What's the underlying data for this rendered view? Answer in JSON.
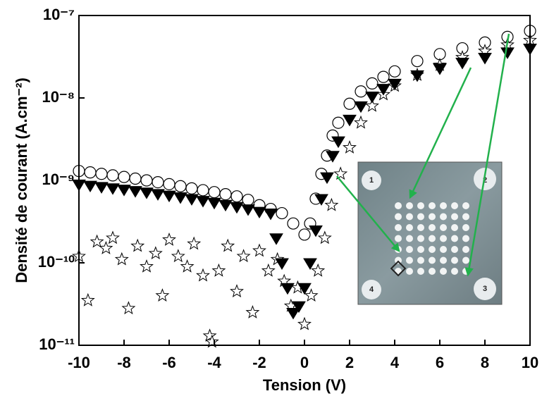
{
  "chart_data": {
    "type": "scatter",
    "ylog": true,
    "xlabel": "Tension (V)",
    "ylabel": "Densité de courant (A.cm⁻²)",
    "xlim": [
      -10,
      10
    ],
    "xticks": [
      -10,
      -8,
      -6,
      -4,
      -2,
      0,
      2,
      4,
      6,
      8,
      10
    ],
    "ylim": [
      1e-11,
      1e-07
    ],
    "yticks": [
      {
        "value": 1e-11,
        "label": "10⁻¹¹"
      },
      {
        "value": 1e-10,
        "label": "10⁻¹⁰"
      },
      {
        "value": 1e-09,
        "label": "10⁻⁹"
      },
      {
        "value": 1e-08,
        "label": "10⁻⁸"
      },
      {
        "value": 1e-07,
        "label": "10⁻⁷"
      }
    ],
    "series": [
      {
        "marker": "circle",
        "color": "#000000",
        "fill": "#ffffff",
        "x": [
          -10,
          -9.5,
          -9,
          -8.5,
          -8,
          -7.5,
          -7,
          -6.5,
          -6,
          -5.5,
          -5,
          -4.5,
          -4,
          -3.5,
          -3,
          -2.5,
          -2,
          -1.5,
          -1,
          -0.5,
          0,
          0.25,
          0.5,
          0.75,
          1,
          1.25,
          1.5,
          2,
          2.5,
          3,
          3.5,
          4,
          5,
          6,
          7,
          8,
          9,
          10
        ],
        "values": [
          1.3e-09,
          1.25e-09,
          1.2e-09,
          1.15e-09,
          1.1e-09,
          1.05e-09,
          1e-09,
          9.5e-10,
          9e-10,
          8.5e-10,
          8e-10,
          7.6e-10,
          7.2e-10,
          6.8e-10,
          6.4e-10,
          5.8e-10,
          5e-10,
          4.5e-10,
          4e-10,
          3e-10,
          2.2e-10,
          3e-10,
          6e-10,
          1.2e-09,
          2e-09,
          3.5e-09,
          5e-09,
          8.5e-09,
          1.2e-08,
          1.5e-08,
          1.8e-08,
          2.1e-08,
          2.8e-08,
          3.4e-08,
          4e-08,
          4.7e-08,
          5.5e-08,
          6.5e-08
        ]
      },
      {
        "marker": "star",
        "color": "#000000",
        "fill": "#ffffff",
        "x": [
          -10,
          -9.6,
          -9.2,
          -8.8,
          -8.5,
          -8.1,
          -7.8,
          -7.4,
          -7,
          -6.6,
          -6.3,
          -6,
          -5.6,
          -5.2,
          -4.9,
          -4.5,
          -4.2,
          -4.1,
          -3.8,
          -3.4,
          -3,
          -2.7,
          -2.3,
          -2,
          -1.6,
          -1.2,
          -0.9,
          -0.6,
          -0.3,
          0,
          0.3,
          0.6,
          0.9,
          1.2,
          1.6,
          2,
          2.5,
          3,
          3.5,
          4,
          5,
          6,
          7,
          8,
          9,
          10
        ],
        "values": [
          1.2e-10,
          3.5e-11,
          1.8e-10,
          1.5e-10,
          2e-10,
          1.1e-10,
          2.8e-11,
          1.6e-10,
          9e-11,
          1.3e-10,
          4e-11,
          1.9e-10,
          1.2e-10,
          9e-11,
          1.7e-10,
          7e-11,
          1.3e-11,
          1.1e-11,
          8e-11,
          1.6e-10,
          4.5e-11,
          1.2e-10,
          2.5e-11,
          1.4e-10,
          8e-11,
          1.1e-10,
          6e-11,
          3e-11,
          5e-11,
          1.8e-11,
          4e-11,
          8e-11,
          2e-10,
          5e-10,
          1.2e-09,
          2.5e-09,
          5e-09,
          8e-09,
          1.1e-08,
          1.4e-08,
          1.9e-08,
          2.5e-08,
          3.1e-08,
          3.7e-08,
          4.4e-08,
          5e-08
        ]
      },
      {
        "marker": "triangle-down",
        "color": "#000000",
        "fill": "#000000",
        "x": [
          -10,
          -9.5,
          -9,
          -8.5,
          -8,
          -7.5,
          -7,
          -6.5,
          -6,
          -5.5,
          -5,
          -4.5,
          -4,
          -3.5,
          -3,
          -2.5,
          -2,
          -1.5,
          -1.25,
          -1,
          -0.75,
          -0.5,
          -0.25,
          0,
          0.25,
          0.5,
          0.75,
          1,
          1.25,
          1.5,
          2,
          2.5,
          3,
          3.5,
          4,
          5,
          6,
          7,
          8,
          9,
          10
        ],
        "values": [
          9e-10,
          8.7e-10,
          8.4e-10,
          8.1e-10,
          7.8e-10,
          7.5e-10,
          7.2e-10,
          6.9e-10,
          6.6e-10,
          6.3e-10,
          6e-10,
          5.7e-10,
          5.4e-10,
          5.1e-10,
          4.8e-10,
          4.5e-10,
          4.2e-10,
          4e-10,
          2e-10,
          1e-10,
          5e-11,
          2.5e-11,
          3e-11,
          5e-11,
          1e-10,
          2.5e-10,
          6e-10,
          1.1e-09,
          2e-09,
          3e-09,
          5.5e-09,
          8e-09,
          1.05e-08,
          1.3e-08,
          1.5e-08,
          1.9e-08,
          2.3e-08,
          2.7e-08,
          3.1e-08,
          3.6e-08,
          4e-08
        ]
      }
    ],
    "inset_labels": [
      "1",
      "2",
      "3",
      "4"
    ]
  }
}
